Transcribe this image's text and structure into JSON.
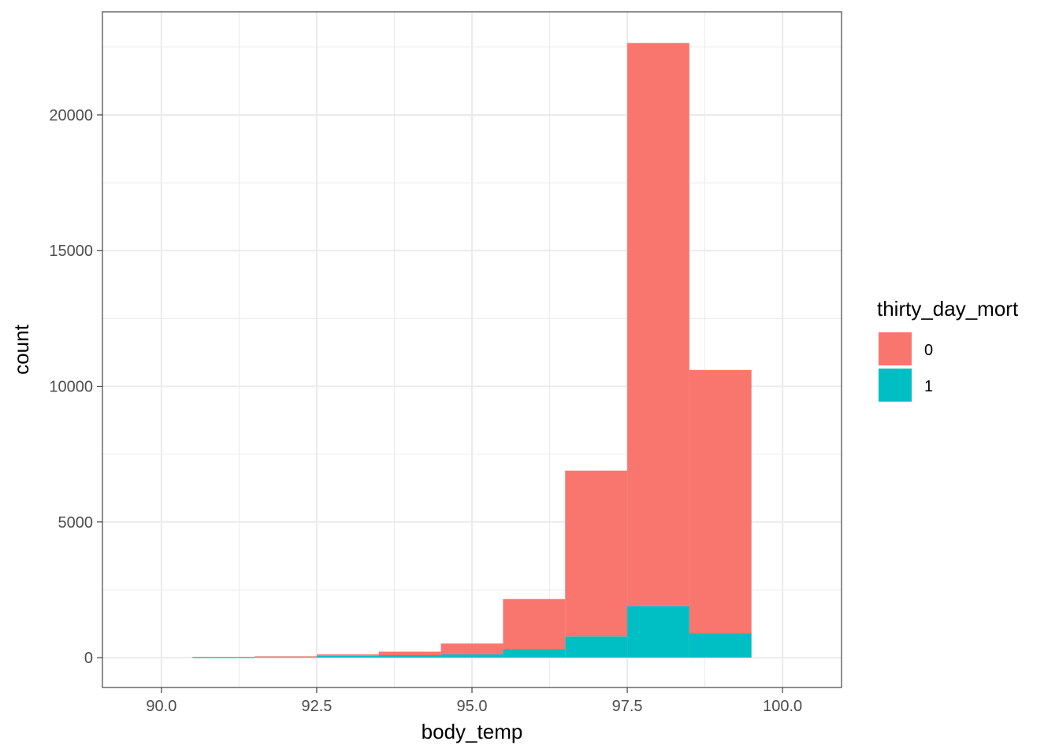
{
  "chart_data": {
    "type": "bar",
    "subtype": "stacked-histogram",
    "xlabel": "body_temp",
    "ylabel": "count",
    "xlim": [
      89.05,
      100.95
    ],
    "ylim": [
      -1100,
      23800
    ],
    "x_ticks": [
      90.0,
      92.5,
      95.0,
      97.5,
      100.0
    ],
    "x_tick_labels": [
      "90.0",
      "92.5",
      "95.0",
      "97.5",
      "100.0"
    ],
    "y_ticks": [
      0,
      5000,
      10000,
      15000,
      20000
    ],
    "y_tick_labels": [
      "0",
      "5000",
      "10000",
      "15000",
      "20000"
    ],
    "grid": true,
    "bin_edges": [
      90.5,
      91.5,
      92.5,
      93.5,
      94.5,
      95.5,
      96.5,
      97.5,
      98.5,
      99.5
    ],
    "legend": {
      "title": "thirty_day_mort",
      "position": "right"
    },
    "series": [
      {
        "name": "1",
        "color": "#00BFC4",
        "values": [
          10,
          25,
          70,
          90,
          120,
          320,
          780,
          1900,
          900
        ]
      },
      {
        "name": "0",
        "color": "#F8766D",
        "values": [
          20,
          25,
          50,
          130,
          400,
          1840,
          6110,
          20750,
          9700
        ]
      }
    ],
    "legend_order": [
      "0",
      "1"
    ]
  }
}
